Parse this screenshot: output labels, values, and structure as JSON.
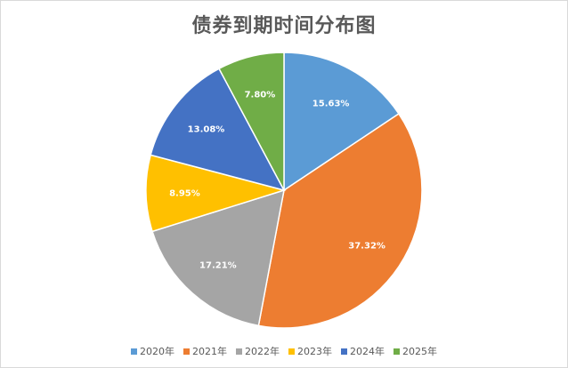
{
  "chart_data": {
    "type": "pie",
    "title": "债券到期时间分布图",
    "categories": [
      "2020年",
      "2021年",
      "2022年",
      "2023年",
      "2024年",
      "2025年"
    ],
    "values": [
      15.63,
      37.32,
      17.21,
      8.95,
      13.08,
      7.8
    ],
    "labels": [
      "15.63%",
      "37.32%",
      "17.21%",
      "8.95%",
      "13.08%",
      "7.80%"
    ],
    "colors": [
      "#5b9bd5",
      "#ed7d31",
      "#a5a5a5",
      "#ffc000",
      "#4472c4",
      "#70ad47"
    ],
    "legend_position": "bottom"
  }
}
